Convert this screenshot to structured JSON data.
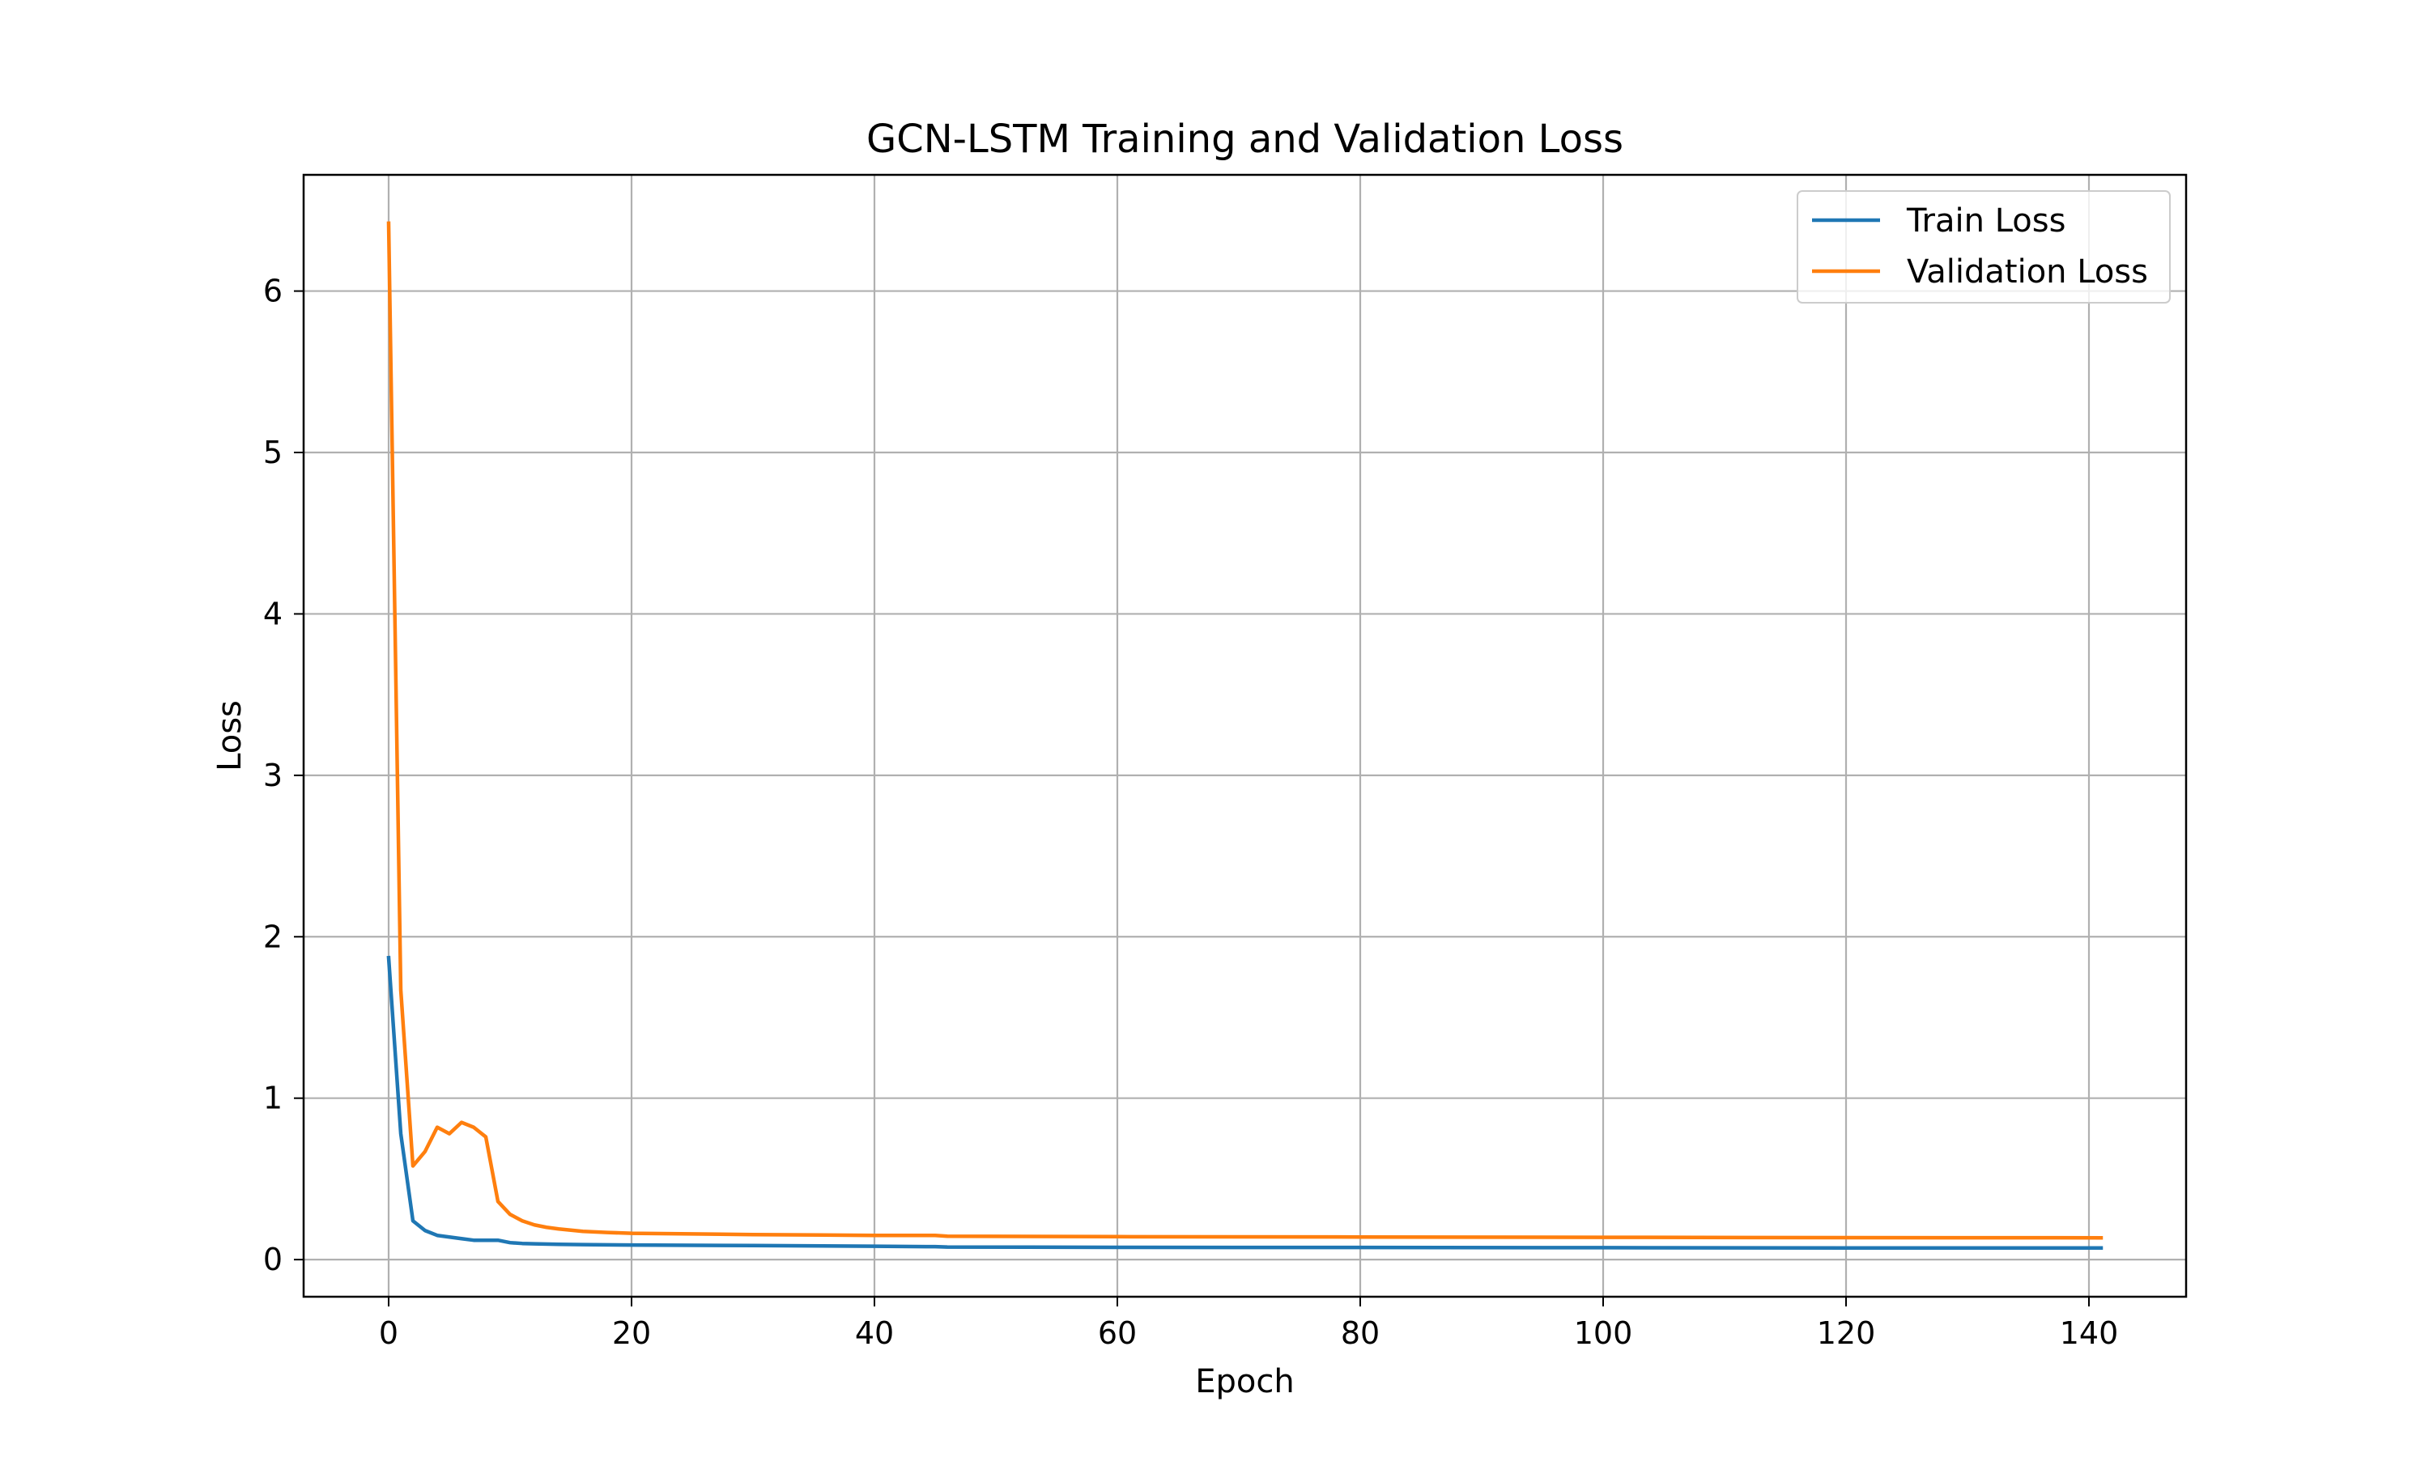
{
  "chart_data": {
    "type": "line",
    "title": "GCN-LSTM Training and Validation Loss",
    "xlabel": "Epoch",
    "ylabel": "Loss",
    "xlim": [
      -7,
      148
    ],
    "ylim": [
      -0.23,
      6.72
    ],
    "xticks": [
      0,
      20,
      40,
      60,
      80,
      100,
      120,
      140
    ],
    "yticks": [
      0,
      1,
      2,
      3,
      4,
      5,
      6
    ],
    "xtick_labels": [
      "0",
      "20",
      "40",
      "60",
      "80",
      "100",
      "120",
      "140"
    ],
    "ytick_labels": [
      "0",
      "1",
      "2",
      "3",
      "4",
      "5",
      "6"
    ],
    "grid": true,
    "legend_position": "top-right",
    "series": [
      {
        "name": "Train Loss",
        "color": "#1f77b4",
        "x": [
          0,
          1,
          2,
          3,
          4,
          5,
          6,
          7,
          8,
          9,
          10,
          11,
          12,
          14,
          16,
          20,
          30,
          40,
          45,
          46,
          60,
          80,
          100,
          120,
          141
        ],
        "values": [
          1.87,
          0.78,
          0.24,
          0.18,
          0.15,
          0.14,
          0.13,
          0.12,
          0.12,
          0.12,
          0.105,
          0.1,
          0.098,
          0.095,
          0.093,
          0.09,
          0.087,
          0.083,
          0.08,
          0.078,
          0.076,
          0.075,
          0.074,
          0.072,
          0.072
        ]
      },
      {
        "name": "Validation Loss",
        "color": "#ff7f0e",
        "x": [
          0,
          1,
          2,
          3,
          4,
          5,
          6,
          7,
          8,
          9,
          10,
          11,
          12,
          13,
          14,
          16,
          18,
          20,
          30,
          40,
          45,
          46,
          60,
          80,
          100,
          120,
          141
        ],
        "values": [
          6.42,
          1.67,
          0.58,
          0.67,
          0.82,
          0.78,
          0.85,
          0.82,
          0.76,
          0.36,
          0.28,
          0.24,
          0.215,
          0.2,
          0.19,
          0.175,
          0.168,
          0.163,
          0.155,
          0.15,
          0.15,
          0.145,
          0.142,
          0.14,
          0.138,
          0.136,
          0.135
        ]
      }
    ]
  }
}
